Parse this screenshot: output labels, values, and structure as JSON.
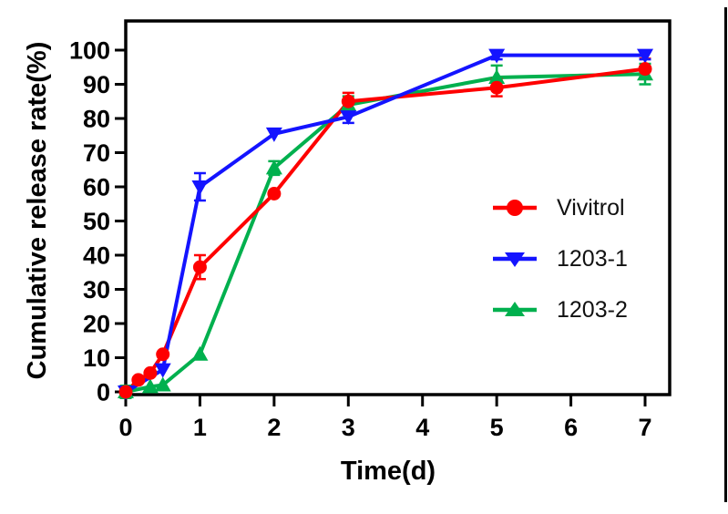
{
  "chart_data": {
    "type": "line",
    "title": "",
    "xlabel": "Time(d)",
    "ylabel": "Cumulative release rate(%)",
    "x_ticks": [
      0,
      1,
      2,
      3,
      4,
      5,
      6,
      7
    ],
    "y_ticks": [
      0,
      10,
      20,
      30,
      40,
      50,
      60,
      70,
      80,
      90,
      100
    ],
    "xlim": [
      0,
      7.35
    ],
    "ylim": [
      0,
      110
    ],
    "grid": false,
    "legend_position": "inside-right",
    "frame": "full-box",
    "axis_color": "#000000",
    "series": [
      {
        "name": "Vivitrol",
        "color": "#fe0000",
        "marker": "circle",
        "x": [
          0,
          0.17,
          0.33,
          0.5,
          1,
          2,
          3,
          5,
          7
        ],
        "y": [
          0,
          3.5,
          5.5,
          11,
          36.5,
          58,
          85,
          89,
          94.5
        ],
        "err": [
          1.5,
          0,
          0,
          0,
          3.5,
          0,
          2.5,
          2.5,
          3
        ]
      },
      {
        "name": "1203-1",
        "color": "#1414ff",
        "marker": "triangle-down",
        "x": [
          0,
          0.5,
          1,
          2,
          3,
          5,
          7
        ],
        "y": [
          0,
          6.5,
          60,
          75.5,
          80.5,
          98.5,
          98.5
        ],
        "err": [
          1.5,
          0,
          4,
          0,
          1.8,
          1.2,
          1.2
        ]
      },
      {
        "name": "1203-2",
        "color": "#00b04e",
        "marker": "triangle-up",
        "x": [
          0,
          0.33,
          0.5,
          1,
          2,
          3,
          5,
          7
        ],
        "y": [
          0,
          1.5,
          2,
          11,
          65.5,
          84,
          92,
          93
        ],
        "err": [
          1.8,
          0,
          0,
          0,
          2,
          2.5,
          3.5,
          3
        ]
      }
    ]
  },
  "decor": {
    "right_page_border": true
  }
}
